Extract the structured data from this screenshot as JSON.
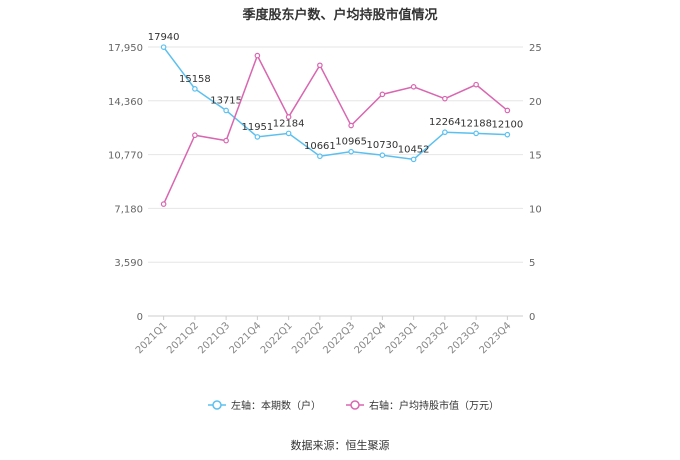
{
  "chart_data": {
    "type": "line",
    "title": "季度股东户数、户均持股市值情况",
    "categories": [
      "2021Q1",
      "2021Q2",
      "2021Q3",
      "2021Q4",
      "2022Q1",
      "2022Q2",
      "2022Q3",
      "2022Q4",
      "2023Q1",
      "2023Q2",
      "2023Q3",
      "2023Q4"
    ],
    "left_axis": {
      "ticks": [
        "0",
        "3,590",
        "7,180",
        "10,770",
        "14,360",
        "17,950"
      ],
      "range": [
        0,
        17950
      ]
    },
    "right_axis": {
      "ticks": [
        "0",
        "5",
        "10",
        "15",
        "20",
        "25"
      ],
      "range": [
        0,
        25
      ]
    },
    "series": [
      {
        "name": "左轴：本期数（户）",
        "axis": "left",
        "color": "#5bc0f0",
        "values": [
          17940,
          15158,
          13715,
          11951,
          12184,
          10661,
          10965,
          10730,
          10452,
          12264,
          12188,
          12100
        ],
        "labels": [
          "17940",
          "15158",
          "13715",
          "11951",
          "12184",
          "10661",
          "10965",
          "10730",
          "10452",
          "12264",
          "12188",
          "12100"
        ]
      },
      {
        "name": "右轴：户均持股市值（万元）",
        "axis": "right",
        "color": "#d966b0",
        "values": [
          10.4,
          16.8,
          16.3,
          24.2,
          18.5,
          23.3,
          17.7,
          20.6,
          21.3,
          20.2,
          21.5,
          19.1
        ]
      }
    ],
    "grid": true,
    "legend_position": "bottom"
  },
  "source": "数据来源：恒生聚源"
}
